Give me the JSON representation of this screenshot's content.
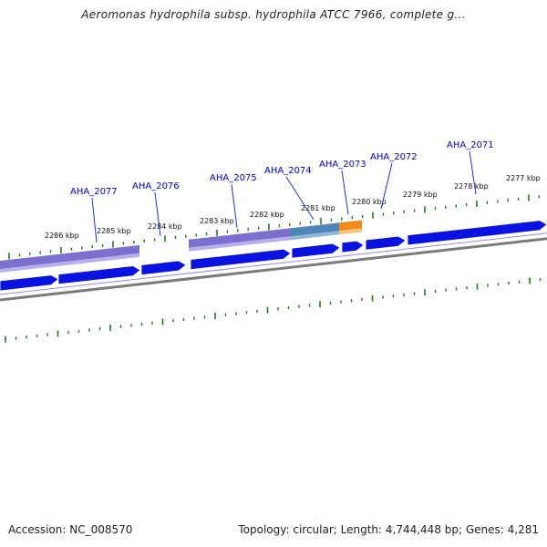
{
  "title": "Aeromonas hydrophila subsp. hydrophila ATCC 7966, complete g...",
  "footer": {
    "accession": "Accession: NC_008570",
    "summary": "Topology: circular; Length: 4,744,448 bp; Genes: 4,281"
  },
  "colors": {
    "gene_forward": "#0a12e0",
    "gene_highlight": "#f08a18",
    "track_purple": "#7b6fd0",
    "track_teal": "#4f86b8",
    "backbone": "#7a7a7a",
    "tick": "#1e7a1e",
    "label_line": "#2233cc",
    "label_text": "#0000cc"
  },
  "scale_labels": [
    "2277 kbp",
    "2278 kbp",
    "2279 kbp",
    "2280 kbp",
    "2281 kbp",
    "2282 kbp",
    "2283 kbp",
    "2284 kbp",
    "2285 kbp",
    "2286 kbp"
  ],
  "gene_labels": [
    "AHA_2071",
    "AHA_2072",
    "AHA_2073",
    "AHA_2074",
    "AHA_2075",
    "AHA_2076",
    "AHA_2077"
  ]
}
